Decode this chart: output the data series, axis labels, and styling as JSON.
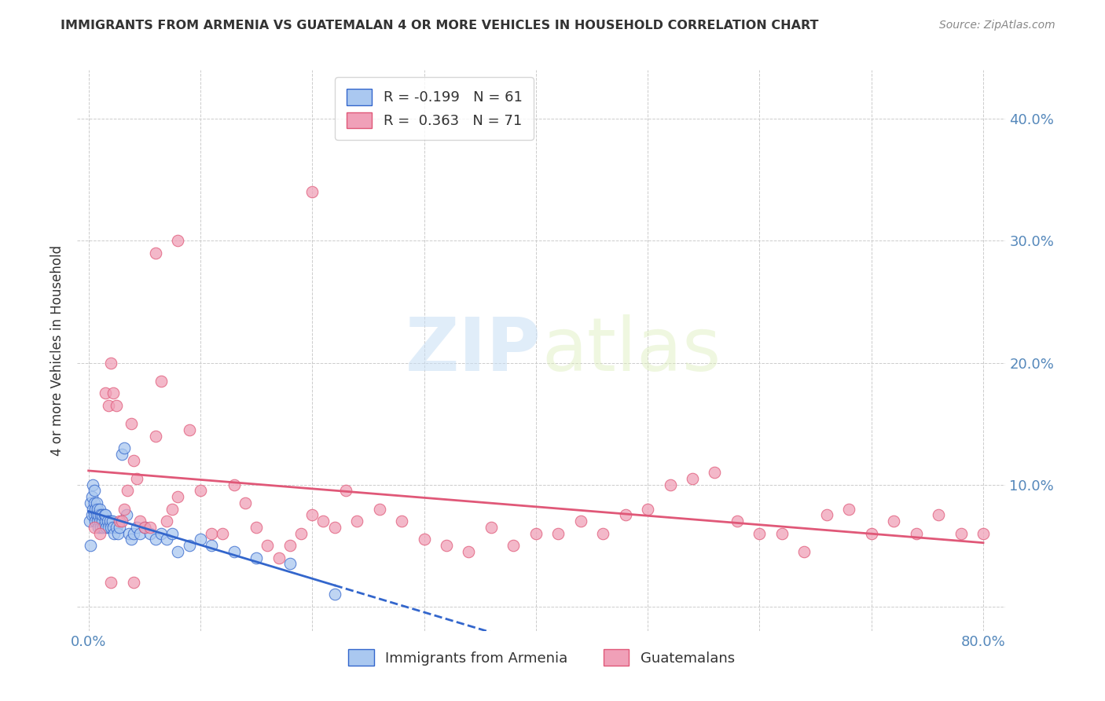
{
  "title": "IMMIGRANTS FROM ARMENIA VS GUATEMALAN 4 OR MORE VEHICLES IN HOUSEHOLD CORRELATION CHART",
  "source": "Source: ZipAtlas.com",
  "ylabel": "4 or more Vehicles in Household",
  "xlim": [
    -0.01,
    0.82
  ],
  "ylim": [
    -0.02,
    0.44
  ],
  "blue_R": "-0.199",
  "blue_N": "61",
  "pink_R": "0.363",
  "pink_N": "71",
  "blue_color": "#aac8f0",
  "pink_color": "#f0a0b8",
  "blue_line_color": "#3366cc",
  "pink_line_color": "#e05878",
  "legend_label_blue": "Immigrants from Armenia",
  "legend_label_pink": "Guatemalans",
  "blue_scatter_x": [
    0.001,
    0.002,
    0.002,
    0.003,
    0.003,
    0.004,
    0.004,
    0.005,
    0.005,
    0.005,
    0.006,
    0.006,
    0.007,
    0.007,
    0.008,
    0.008,
    0.009,
    0.009,
    0.01,
    0.01,
    0.011,
    0.011,
    0.012,
    0.012,
    0.013,
    0.014,
    0.015,
    0.015,
    0.016,
    0.017,
    0.018,
    0.019,
    0.02,
    0.021,
    0.022,
    0.023,
    0.025,
    0.026,
    0.028,
    0.03,
    0.032,
    0.034,
    0.036,
    0.038,
    0.04,
    0.043,
    0.046,
    0.05,
    0.055,
    0.06,
    0.065,
    0.07,
    0.075,
    0.08,
    0.09,
    0.1,
    0.11,
    0.13,
    0.15,
    0.18,
    0.22
  ],
  "blue_scatter_y": [
    0.07,
    0.05,
    0.085,
    0.075,
    0.09,
    0.08,
    0.1,
    0.075,
    0.085,
    0.095,
    0.07,
    0.08,
    0.075,
    0.085,
    0.07,
    0.08,
    0.065,
    0.075,
    0.07,
    0.08,
    0.065,
    0.075,
    0.07,
    0.075,
    0.065,
    0.075,
    0.07,
    0.075,
    0.065,
    0.07,
    0.065,
    0.07,
    0.065,
    0.07,
    0.065,
    0.06,
    0.065,
    0.06,
    0.065,
    0.125,
    0.13,
    0.075,
    0.06,
    0.055,
    0.06,
    0.065,
    0.06,
    0.065,
    0.06,
    0.055,
    0.06,
    0.055,
    0.06,
    0.045,
    0.05,
    0.055,
    0.05,
    0.045,
    0.04,
    0.035,
    0.01
  ],
  "pink_scatter_x": [
    0.005,
    0.01,
    0.015,
    0.018,
    0.02,
    0.022,
    0.025,
    0.028,
    0.03,
    0.032,
    0.035,
    0.038,
    0.04,
    0.043,
    0.046,
    0.05,
    0.055,
    0.06,
    0.065,
    0.07,
    0.075,
    0.08,
    0.09,
    0.1,
    0.11,
    0.12,
    0.13,
    0.14,
    0.15,
    0.16,
    0.17,
    0.18,
    0.19,
    0.2,
    0.21,
    0.22,
    0.23,
    0.24,
    0.26,
    0.28,
    0.3,
    0.32,
    0.34,
    0.36,
    0.38,
    0.4,
    0.42,
    0.44,
    0.46,
    0.48,
    0.5,
    0.52,
    0.54,
    0.56,
    0.58,
    0.6,
    0.62,
    0.64,
    0.66,
    0.68,
    0.7,
    0.72,
    0.74,
    0.76,
    0.78,
    0.8,
    0.02,
    0.04,
    0.2,
    0.06,
    0.08
  ],
  "pink_scatter_y": [
    0.065,
    0.06,
    0.175,
    0.165,
    0.2,
    0.175,
    0.165,
    0.07,
    0.07,
    0.08,
    0.095,
    0.15,
    0.12,
    0.105,
    0.07,
    0.065,
    0.065,
    0.14,
    0.185,
    0.07,
    0.08,
    0.09,
    0.145,
    0.095,
    0.06,
    0.06,
    0.1,
    0.085,
    0.065,
    0.05,
    0.04,
    0.05,
    0.06,
    0.34,
    0.07,
    0.065,
    0.095,
    0.07,
    0.08,
    0.07,
    0.055,
    0.05,
    0.045,
    0.065,
    0.05,
    0.06,
    0.06,
    0.07,
    0.06,
    0.075,
    0.08,
    0.1,
    0.105,
    0.11,
    0.07,
    0.06,
    0.06,
    0.045,
    0.075,
    0.08,
    0.06,
    0.07,
    0.06,
    0.075,
    0.06,
    0.06,
    0.02,
    0.02,
    0.075,
    0.29,
    0.3
  ],
  "watermark_zip": "ZIP",
  "watermark_atlas": "atlas",
  "background_color": "#ffffff",
  "grid_color": "#cccccc",
  "title_color": "#333333",
  "axis_tick_color": "#5588bb",
  "right_yaxis_color": "#5588bb",
  "source_color": "#888888"
}
